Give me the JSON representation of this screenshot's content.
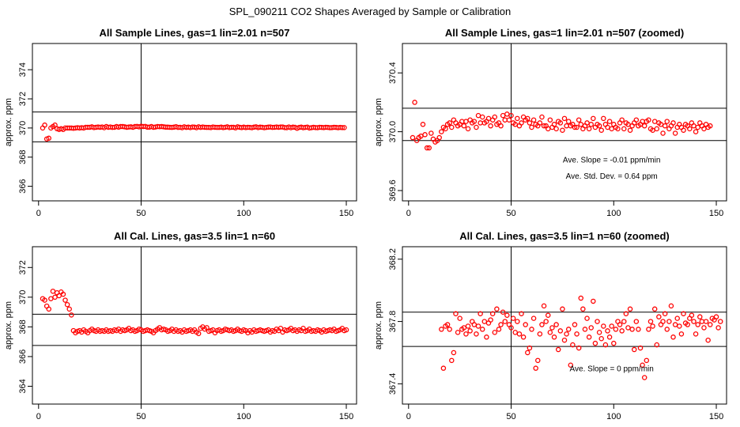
{
  "page_title": "SPL_090211  CO2 Shapes Averaged by Sample or Calibration",
  "chart_data": [
    {
      "type": "scatter",
      "title": "All Sample Lines, gas=1 lin=2.01 n=507",
      "xlabel": "",
      "ylabel": "approx. ppm",
      "xlim": [
        -3,
        155
      ],
      "ylim": [
        365,
        375.8
      ],
      "xticks": [
        0,
        50,
        100,
        150
      ],
      "yticks": [
        366,
        368,
        370,
        372,
        374
      ],
      "hlines": [
        371.1,
        369.05
      ],
      "vline": 50,
      "annotations": [],
      "series": [
        {
          "name": "",
          "color": "#ff0000",
          "x_start": 2,
          "x_step": 1,
          "y": [
            370.0,
            370.2,
            369.25,
            369.3,
            370.0,
            370.1,
            370.2,
            369.95,
            369.9,
            369.95,
            369.9,
            370.0,
            370.0,
            370.0,
            370.0,
            369.98,
            370.0,
            370.02,
            370.0,
            370.02,
            370.0,
            370.05,
            370.05,
            370.05,
            370.08,
            370.03,
            370.05,
            370.07,
            370.05,
            370.07,
            370.02,
            370.1,
            370.05,
            370.07,
            370.04,
            370.05,
            370.1,
            370.06,
            370.1,
            370.1,
            370.08,
            370.05,
            370.07,
            370.08,
            370.05,
            370.1,
            370.11,
            370.08,
            370.12,
            370.1,
            370.11,
            370.06,
            370.06,
            370.1,
            370.05,
            370.07,
            370.1,
            370.09,
            370.1,
            370.08,
            370.06,
            370.06,
            370.05,
            370.04,
            370.06,
            370.09,
            370.04,
            370.05,
            370.02,
            370.08,
            370.04,
            370.06,
            370.03,
            370.07,
            370.06,
            370.02,
            370.08,
            370.04,
            370.07,
            370.05,
            370.04,
            370.04,
            370.03,
            370.07,
            370.05,
            370.04,
            370.04,
            370.06,
            370.03,
            370.05,
            370.08,
            370.03,
            370.05,
            370.05,
            370.01,
            370.08,
            370.05,
            370.03,
            370.06,
            370.03,
            370.05,
            370.04,
            370.02,
            370.06,
            370.08,
            370.03,
            370.06,
            370.05,
            370.02,
            370.04,
            370.06,
            370.07,
            370.04,
            370.05,
            370.07,
            370.05,
            370.07,
            370.07,
            370.03,
            370.02,
            370.07,
            370.02,
            370.06,
            370.05,
            369.98,
            370.04,
            370.06,
            370.02,
            370.04,
            370.06,
            370.0,
            370.02,
            370.05,
            370.03,
            370.02,
            370.05,
            370.04,
            370.03,
            370.05,
            370.04,
            370.02,
            370.03,
            370.05,
            370.04,
            370.02,
            370.04,
            370.03,
            370.03
          ]
        }
      ]
    },
    {
      "type": "scatter",
      "title": "All Sample Lines, gas=1 lin=2.01 n=507 (zoomed)",
      "xlabel": "",
      "ylabel": "approx. ppm",
      "xlim": [
        -3,
        155
      ],
      "ylim": [
        369.53,
        370.6
      ],
      "xticks": [
        0,
        50,
        100,
        150
      ],
      "yticks": [
        369.6,
        370.0,
        370.4
      ],
      "hlines": [
        370.16,
        369.94
      ],
      "vline": 50,
      "annotations": [
        {
          "text": "Ave. Slope =  -0.01  ppm/min",
          "x": 99,
          "y": 369.79
        },
        {
          "text": "Ave. Std. Dev. =  0.64  ppm",
          "x": 99,
          "y": 369.68
        }
      ],
      "series": [
        {
          "name": "",
          "color": "#ff0000",
          "x_start": 2,
          "x_step": 1,
          "y": [
            369.96,
            370.2,
            369.94,
            369.96,
            369.97,
            370.05,
            369.98,
            369.89,
            369.89,
            369.99,
            369.95,
            369.93,
            369.94,
            369.96,
            370.0,
            370.03,
            370.02,
            370.05,
            370.06,
            370.03,
            370.08,
            370.06,
            370.04,
            370.05,
            370.07,
            370.04,
            370.07,
            370.02,
            370.08,
            370.06,
            370.07,
            370.03,
            370.11,
            370.06,
            370.1,
            370.06,
            370.07,
            370.09,
            370.04,
            370.08,
            370.1,
            370.05,
            370.06,
            370.04,
            370.11,
            370.08,
            370.12,
            370.08,
            370.11,
            370.06,
            370.05,
            370.09,
            370.04,
            370.06,
            370.1,
            370.08,
            370.09,
            370.06,
            370.03,
            370.08,
            370.05,
            370.04,
            370.06,
            370.1,
            370.04,
            370.04,
            370.02,
            370.08,
            370.03,
            370.05,
            370.02,
            370.07,
            370.06,
            370.01,
            370.09,
            370.04,
            370.07,
            370.04,
            370.05,
            370.03,
            370.03,
            370.08,
            370.05,
            370.02,
            370.04,
            370.06,
            370.02,
            370.05,
            370.09,
            370.03,
            370.05,
            370.04,
            370.01,
            370.09,
            370.05,
            370.03,
            370.07,
            370.02,
            370.05,
            370.03,
            370.02,
            370.06,
            370.08,
            370.02,
            370.06,
            370.05,
            370.01,
            370.04,
            370.06,
            370.08,
            370.04,
            370.05,
            370.07,
            370.04,
            370.07,
            370.08,
            370.02,
            370.01,
            370.07,
            370.02,
            370.06,
            370.05,
            369.99,
            370.04,
            370.07,
            370.02,
            370.04,
            370.06,
            369.99,
            370.03,
            370.05,
            370.03,
            370.01,
            370.05,
            370.04,
            370.02,
            370.06,
            370.04,
            370.0,
            370.03,
            370.06,
            370.04,
            370.02,
            370.05,
            370.03,
            370.04
          ]
        }
      ]
    },
    {
      "type": "scatter",
      "title": "All Cal. Lines, gas=3.5 lin=1 n=60",
      "xlabel": "",
      "ylabel": "approx. ppm",
      "xlim": [
        -3,
        155
      ],
      "ylim": [
        362.8,
        373.4
      ],
      "xticks": [
        0,
        50,
        100,
        150
      ],
      "yticks": [
        364,
        366,
        368,
        370,
        372
      ],
      "hlines": [
        368.85,
        366.75
      ],
      "vline": 50,
      "annotations": [],
      "series": [
        {
          "name": "",
          "color": "#ff0000",
          "x_start": 2,
          "x_step": 1,
          "y": [
            369.9,
            369.8,
            369.4,
            369.2,
            369.9,
            370.4,
            370.0,
            370.3,
            370.1,
            370.35,
            370.2,
            369.8,
            369.5,
            369.2,
            368.8,
            367.75,
            367.6,
            367.7,
            367.75,
            367.65,
            367.8,
            367.7,
            367.6,
            367.75,
            367.85,
            367.75,
            367.7,
            367.8,
            367.7,
            367.75,
            367.7,
            367.8,
            367.7,
            367.75,
            367.7,
            367.8,
            367.75,
            367.85,
            367.7,
            367.8,
            367.75,
            367.8,
            367.9,
            367.75,
            367.8,
            367.7,
            367.75,
            367.85,
            367.8,
            367.7,
            367.75,
            367.8,
            367.75,
            367.7,
            367.6,
            367.75,
            367.85,
            367.95,
            367.8,
            367.85,
            367.8,
            367.7,
            367.75,
            367.85,
            367.7,
            367.8,
            367.7,
            367.75,
            367.65,
            367.8,
            367.7,
            367.75,
            367.8,
            367.7,
            367.8,
            367.65,
            367.55,
            367.9,
            368.0,
            367.85,
            367.95,
            367.7,
            367.75,
            367.8,
            367.6,
            367.75,
            367.8,
            367.7,
            367.75,
            367.85,
            367.8,
            367.75,
            367.8,
            367.7,
            367.75,
            367.85,
            367.75,
            367.7,
            367.8,
            367.75,
            367.6,
            367.75,
            367.65,
            367.8,
            367.7,
            367.75,
            367.8,
            367.75,
            367.7,
            367.75,
            367.8,
            367.65,
            367.75,
            367.7,
            367.85,
            367.75,
            367.9,
            367.65,
            367.8,
            367.75,
            367.8,
            367.9,
            367.75,
            367.8,
            367.7,
            367.8,
            367.75,
            367.9,
            367.7,
            367.75,
            367.85,
            367.7,
            367.75,
            367.7,
            367.8,
            367.75,
            367.65,
            367.8,
            367.7,
            367.75,
            367.8,
            367.75,
            367.85,
            367.7,
            367.75,
            367.8,
            367.9,
            367.75,
            367.8
          ]
        }
      ]
    },
    {
      "type": "scatter",
      "title": "All Cal. Lines, gas=3.5 lin=1 n=60 (zoomed)",
      "xlabel": "",
      "ylabel": "approx. ppm",
      "xlim": [
        -3,
        155
      ],
      "ylim": [
        367.27,
        368.28
      ],
      "xticks": [
        0,
        50,
        100,
        150
      ],
      "yticks": [
        367.4,
        367.8,
        368.2
      ],
      "hlines": [
        367.86,
        367.64
      ],
      "vline": 50,
      "annotations": [
        {
          "text": "Ave. Slope =  0  ppm/min",
          "x": 99,
          "y": 367.48
        }
      ],
      "series": [
        {
          "name": "",
          "color": "#ff0000",
          "x_start": 16,
          "x_step": 1,
          "y": [
            367.75,
            367.5,
            367.77,
            367.78,
            367.75,
            367.55,
            367.6,
            367.85,
            367.73,
            367.82,
            367.75,
            367.76,
            367.72,
            367.77,
            367.74,
            367.8,
            367.78,
            367.72,
            367.77,
            367.85,
            367.75,
            367.8,
            367.7,
            367.79,
            367.81,
            367.85,
            367.73,
            367.88,
            367.75,
            367.78,
            367.86,
            367.8,
            367.84,
            367.78,
            367.76,
            367.82,
            367.73,
            367.8,
            367.72,
            367.85,
            367.7,
            367.78,
            367.6,
            367.63,
            367.75,
            367.82,
            367.5,
            367.55,
            367.72,
            367.78,
            367.9,
            367.8,
            367.84,
            367.73,
            367.76,
            367.7,
            367.78,
            367.62,
            367.74,
            367.88,
            367.68,
            367.72,
            367.75,
            367.52,
            367.65,
            367.78,
            367.72,
            367.63,
            367.95,
            367.88,
            367.75,
            367.82,
            367.7,
            367.76,
            367.93,
            367.66,
            367.8,
            367.73,
            367.69,
            367.77,
            367.65,
            367.74,
            367.7,
            367.77,
            367.66,
            367.75,
            367.8,
            367.78,
            367.74,
            367.8,
            367.85,
            367.76,
            367.88,
            367.75,
            367.62,
            367.8,
            367.75,
            367.63,
            367.52,
            367.44,
            367.55,
            367.75,
            367.8,
            367.77,
            367.88,
            367.65,
            367.83,
            367.78,
            367.8,
            367.85,
            367.75,
            367.8,
            367.9,
            367.7,
            367.78,
            367.82,
            367.77,
            367.72,
            367.85,
            367.79,
            367.78,
            367.82,
            367.84,
            367.8,
            367.72,
            367.78,
            367.83,
            367.8,
            367.76,
            367.8,
            367.68,
            367.78,
            367.82,
            367.81,
            367.83,
            367.76,
            367.8
          ]
        }
      ]
    }
  ]
}
